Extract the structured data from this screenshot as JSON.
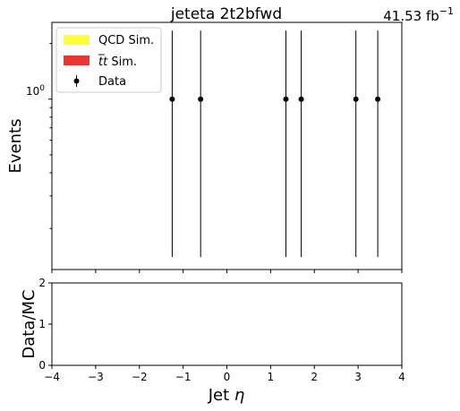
{
  "chart_data": {
    "type": "scatter",
    "title": "jeteta  2t2bfwd",
    "luminosity": "41.53",
    "luminosity_unit": "fb",
    "luminosity_exp": "−1",
    "xlim": [
      -4,
      4
    ],
    "xticks": [
      "−4",
      "−3",
      "−2",
      "−1",
      "0",
      "1",
      "2",
      "3",
      "4"
    ],
    "xtick_values": [
      -4,
      -3,
      -2,
      -1,
      0,
      1,
      2,
      3,
      4
    ],
    "xlabel_main": "Jet ",
    "xlabel_symbol": "η",
    "main_panel": {
      "ylabel": "Events",
      "yscale": "log",
      "ylim": [
        0.12,
        2.6
      ],
      "ytick_base": "10",
      "ytick_exp": "0",
      "data_points": [
        {
          "x": -1.25,
          "y": 1,
          "yerr_low": 0.86,
          "yerr_high": 1.35
        },
        {
          "x": -0.6,
          "y": 1,
          "yerr_low": 0.86,
          "yerr_high": 1.35
        },
        {
          "x": 1.35,
          "y": 1,
          "yerr_low": 0.86,
          "yerr_high": 1.35
        },
        {
          "x": 1.7,
          "y": 1,
          "yerr_low": 0.86,
          "yerr_high": 1.35
        },
        {
          "x": 2.95,
          "y": 1,
          "yerr_low": 0.86,
          "yerr_high": 1.35
        },
        {
          "x": 3.45,
          "y": 1,
          "yerr_low": 0.86,
          "yerr_high": 1.35
        }
      ],
      "legend": {
        "placement": "top-left",
        "entries": [
          {
            "label_main": "QCD Sim.",
            "label_prefix": "",
            "label_symbol": "",
            "color": "#ffff33",
            "marker": "patch"
          },
          {
            "label_main": " Sim.",
            "label_prefix": "",
            "label_symbol": "t̅t",
            "color": "#ee3333",
            "marker": "patch"
          },
          {
            "label_main": "Data",
            "label_prefix": "",
            "label_symbol": "",
            "color": "#000000",
            "marker": "errorbar"
          }
        ]
      }
    },
    "ratio_panel": {
      "ylabel": "Data/MC",
      "ylim": [
        0,
        2
      ],
      "yticks": [
        "0",
        "1",
        "2"
      ],
      "ytick_values": [
        0,
        1,
        2
      ]
    }
  }
}
